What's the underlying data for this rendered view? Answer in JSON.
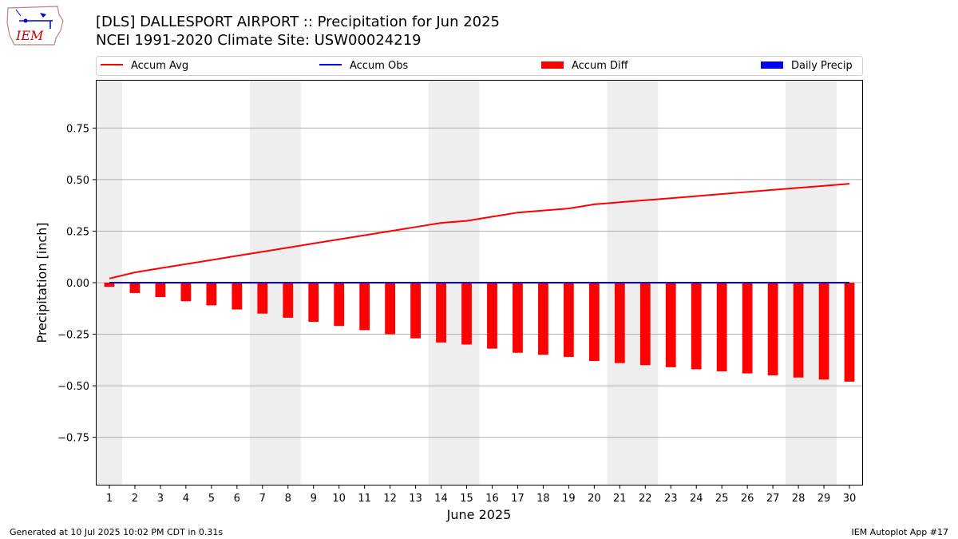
{
  "header": {
    "title_line1": "[DLS] DALLESPORT AIRPORT :: Precipitation for Jun 2025",
    "title_line2": "NCEI 1991-2020 Climate Site: USW00024219",
    "logo_text": "IEM"
  },
  "footer": {
    "generated": "Generated at 10 Jul 2025 10:02 PM CDT in 0.31s",
    "app": "IEM Autoplot App #17"
  },
  "colors": {
    "accum_avg": "#ff0000",
    "accum_obs": "#0000ff",
    "accum_diff": "#ff0000",
    "daily_precip": "#0000ff",
    "weekend_shade": "#eeeeee",
    "grid": "#b0b0b0"
  },
  "chart_data": {
    "type": "bar",
    "xlabel": "June 2025",
    "ylabel": "Precipitation [inch]",
    "ylim": [
      -0.98,
      0.98
    ],
    "xlim": [
      0.5,
      30.5
    ],
    "grid": "horizontal",
    "legend_position": "top",
    "yticks": [
      -0.75,
      -0.5,
      -0.25,
      0.0,
      0.25,
      0.5,
      0.75
    ],
    "ytick_labels": [
      "−0.75",
      "−0.50",
      "−0.25",
      "0.00",
      "0.25",
      "0.50",
      "0.75"
    ],
    "days": [
      1,
      2,
      3,
      4,
      5,
      6,
      7,
      8,
      9,
      10,
      11,
      12,
      13,
      14,
      15,
      16,
      17,
      18,
      19,
      20,
      21,
      22,
      23,
      24,
      25,
      26,
      27,
      28,
      29,
      30
    ],
    "shaded_days": [
      1,
      7,
      8,
      14,
      15,
      21,
      22,
      28,
      29
    ],
    "series": [
      {
        "name": "Accum Avg",
        "kind": "line",
        "values": [
          0.02,
          0.05,
          0.07,
          0.09,
          0.11,
          0.13,
          0.15,
          0.17,
          0.19,
          0.21,
          0.23,
          0.25,
          0.27,
          0.29,
          0.3,
          0.32,
          0.34,
          0.35,
          0.36,
          0.38,
          0.39,
          0.4,
          0.41,
          0.42,
          0.43,
          0.44,
          0.45,
          0.46,
          0.47,
          0.48
        ]
      },
      {
        "name": "Accum Obs",
        "kind": "line",
        "values": [
          0,
          0,
          0,
          0,
          0,
          0,
          0,
          0,
          0,
          0,
          0,
          0,
          0,
          0,
          0,
          0,
          0,
          0,
          0,
          0,
          0,
          0,
          0,
          0,
          0,
          0,
          0,
          0,
          0,
          0
        ]
      },
      {
        "name": "Accum Diff",
        "kind": "bar",
        "values": [
          -0.02,
          -0.05,
          -0.07,
          -0.09,
          -0.11,
          -0.13,
          -0.15,
          -0.17,
          -0.19,
          -0.21,
          -0.23,
          -0.25,
          -0.27,
          -0.29,
          -0.3,
          -0.32,
          -0.34,
          -0.35,
          -0.36,
          -0.38,
          -0.39,
          -0.4,
          -0.41,
          -0.42,
          -0.43,
          -0.44,
          -0.45,
          -0.46,
          -0.47,
          -0.48
        ]
      },
      {
        "name": "Daily Precip",
        "kind": "bar",
        "values": [
          0,
          0,
          0,
          0,
          0,
          0,
          0,
          0,
          0,
          0,
          0,
          0,
          0,
          0,
          0,
          0,
          0,
          0,
          0,
          0,
          0,
          0,
          0,
          0,
          0,
          0,
          0,
          0,
          0,
          0
        ]
      }
    ]
  }
}
